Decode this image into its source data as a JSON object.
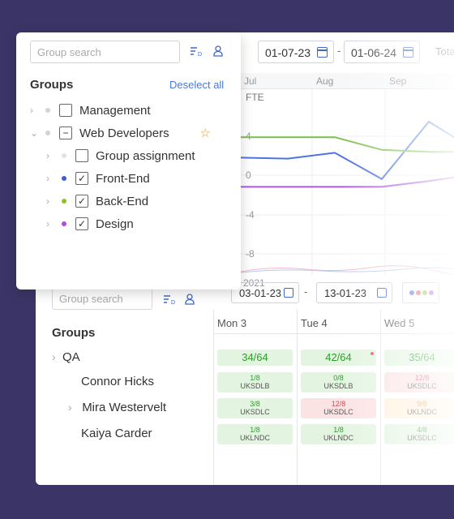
{
  "front_panel": {
    "search_placeholder": "Group search",
    "groups_title": "Groups",
    "deselect_label": "Deselect all",
    "tree": [
      {
        "label": "Management",
        "state": "unchecked",
        "dot_color": "#cfd3da",
        "level": 0,
        "expanded": false
      },
      {
        "label": "Web Developers",
        "state": "indeterminate",
        "dot_color": "#cfd3da",
        "level": 0,
        "expanded": true,
        "favorite": true
      },
      {
        "label": "Group assignment",
        "state": "unchecked",
        "dot_color": "#e0e2e6",
        "level": 1,
        "expanded": false
      },
      {
        "label": "Front-End",
        "state": "checked",
        "dot_color": "#3b5ed6",
        "level": 1,
        "expanded": false
      },
      {
        "label": "Back-End",
        "state": "checked",
        "dot_color": "#8dc322",
        "level": 1,
        "expanded": false
      },
      {
        "label": "Design",
        "state": "checked",
        "dot_color": "#b44ae0",
        "level": 1,
        "expanded": false
      }
    ]
  },
  "chart_toolbar": {
    "date_from": "01-07-23",
    "date_to": "01-06-24",
    "separator": "-",
    "total_label": "Tota"
  },
  "chart_data": {
    "type": "line",
    "months": [
      "Jul",
      "Aug",
      "Sep"
    ],
    "ylabel": "FTE",
    "y_ticks": [
      "4",
      "0",
      "-4",
      "-8"
    ],
    "ylim": [
      -8,
      8
    ],
    "series": [
      {
        "color": "#4f73e0",
        "values": [
          1.8,
          1.7,
          2.3,
          -0.4,
          5.5,
          2.5
        ]
      },
      {
        "color": "#7cc04e",
        "values": [
          3.9,
          3.9,
          3.9,
          2.6,
          2.4,
          2.4
        ]
      },
      {
        "color": "#a95ae6",
        "values": [
          -1.2,
          -1.2,
          -1.2,
          -1.2,
          -0.6,
          0.1
        ]
      }
    ]
  },
  "lower": {
    "year_label": "2021",
    "search_placeholder": "Group search",
    "date_from": "03-01-23",
    "date_to": "13-01-23",
    "separator": "-",
    "groups_title": "Groups",
    "group_name": "QA",
    "people": [
      "Connor Hicks",
      "Mira Westervelt",
      "Kaiya Carder"
    ],
    "days": [
      "Mon 3",
      "Tue 4",
      "Wed 5"
    ],
    "summary": [
      "34/64",
      "42/64",
      "35/64"
    ],
    "rows": [
      [
        {
          "v": "1/8",
          "c": "UKSDLB",
          "t": "g"
        },
        {
          "v": "0/8",
          "c": "UKSDLB",
          "t": "g"
        },
        {
          "v": "12/8",
          "c": "UKSDLC",
          "t": "r"
        }
      ],
      [
        {
          "v": "3/8",
          "c": "UKSDLC",
          "t": "g"
        },
        {
          "v": "12/8",
          "c": "UKSDLC",
          "t": "r"
        },
        {
          "v": "9/8",
          "c": "UKLNDC",
          "t": "o"
        }
      ],
      [
        {
          "v": "1/8",
          "c": "UKLNDC",
          "t": "g"
        },
        {
          "v": "1/8",
          "c": "UKLNDC",
          "t": "g"
        },
        {
          "v": "4/8",
          "c": "UKSDLC",
          "t": "g"
        }
      ]
    ],
    "dot_colors": [
      "#4a73e0",
      "#e05a5a",
      "#8dc322",
      "#b44ae0"
    ]
  },
  "icons": {
    "sort": "sort-d-icon",
    "user": "user-icon",
    "calendar": "calendar-icon",
    "star": "star-icon",
    "chevron": "chevron-icon"
  }
}
